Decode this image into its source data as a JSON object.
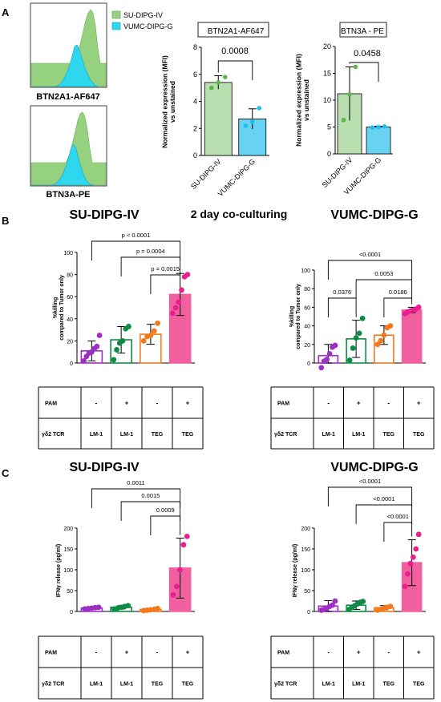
{
  "panels": {
    "a": "A",
    "b": "B",
    "c": "C",
    "middle_title": "2 day co-culturing"
  },
  "flow": {
    "legend": [
      "SU-DIPG-IV",
      "VUMC-DIPG-G"
    ],
    "plot1_label": "BTN2A1-AF647",
    "plot2_label": "BTN3A-PE",
    "colors": {
      "green": "#96d17f",
      "cyan": "#2ed6ee"
    }
  },
  "chart_data": [
    {
      "id": "a1",
      "type": "bar",
      "title": "BTN2A1-AF647",
      "ylabel": "Normalized expression (MFI)\nvs unstained",
      "ylim": [
        0,
        8
      ],
      "yticks": [
        "0",
        "2",
        "4",
        "6",
        "8"
      ],
      "categories": [
        "SU-DIPG-IV",
        "VUMC-DIPG-G"
      ],
      "values": [
        5.4,
        2.7
      ],
      "errors": [
        0.5,
        0.75
      ],
      "points": [
        [
          5.0,
          5.4,
          5.8
        ],
        [
          2.2,
          2.5,
          3.5
        ]
      ],
      "colors": [
        "#b9deb0",
        "#68d2f2"
      ],
      "point_colors": [
        "#5fb54a",
        "#1ebff0"
      ],
      "comparisons": [
        {
          "from": 0,
          "to": 1,
          "label": "0.0008"
        }
      ]
    },
    {
      "id": "a2",
      "type": "bar",
      "title": "BTN3A - PE",
      "ylabel": "Normalized expression (MFI)\nvs unstained",
      "ylim": [
        0,
        20
      ],
      "yticks": [
        "0",
        "5",
        "10",
        "15",
        "20"
      ],
      "categories": [
        "SU-DIPG-IV",
        "VUMC-DIPG-G"
      ],
      "values": [
        11.2,
        5.0
      ],
      "errors": [
        5.0,
        0.15
      ],
      "points": [
        [
          6.3,
          11.1,
          16.2
        ],
        [
          4.9,
          5.0,
          5.1
        ]
      ],
      "colors": [
        "#b9deb0",
        "#68d2f2"
      ],
      "point_colors": [
        "#5fb54a",
        "#1ebff0"
      ],
      "comparisons": [
        {
          "from": 0,
          "to": 1,
          "label": "0.0458"
        }
      ]
    },
    {
      "id": "b1",
      "type": "bar",
      "title": "SU-DIPG-IV",
      "ylabel": "%killing\ncompared to Tumor only",
      "ylim": [
        0,
        100
      ],
      "yticks": [
        "0",
        "20",
        "40",
        "60",
        "80",
        "100"
      ],
      "categories": [
        "LM-1 -",
        "LM-1 +",
        "TEG -",
        "TEG +"
      ],
      "values": [
        11,
        21,
        26,
        62
      ],
      "errors": [
        9,
        12,
        9,
        19
      ],
      "points": [
        [
          2,
          6,
          9,
          10,
          13,
          15,
          25
        ],
        [
          3,
          12,
          18,
          20,
          31,
          33
        ],
        [
          20,
          24,
          25,
          29,
          36
        ],
        [
          45,
          50,
          55,
          66,
          78,
          80
        ]
      ],
      "colors": [
        "#9d2fc4",
        "#0e8c43",
        "#f27a1d",
        "#f25f9f"
      ],
      "point_colors": [
        "#9d2fc4",
        "#0e8c43",
        "#f27a1d",
        "#e8208e"
      ],
      "comparisons": [
        {
          "from": 0,
          "to": 3,
          "label": "p < 0.0001"
        },
        {
          "from": 1,
          "to": 3,
          "label": "p = 0.0004"
        },
        {
          "from": 2,
          "to": 3,
          "label": "p = 0.0015"
        }
      ],
      "table": {
        "row1": "PAM",
        "row2": "γδ2 TCR",
        "pam": [
          "-",
          "+",
          "-",
          "+"
        ],
        "tcr": [
          "LM-1",
          "LM-1",
          "TEG",
          "TEG"
        ]
      }
    },
    {
      "id": "b2",
      "type": "bar",
      "title": "VUMC-DIPG-G",
      "ylabel": "%killing\ncompared to Tumor only",
      "ylim": [
        0,
        100
      ],
      "yticks": [
        "0",
        "20",
        "40",
        "60",
        "80",
        "100"
      ],
      "categories": [
        "LM-1 -",
        "LM-1 +",
        "TEG -",
        "TEG +"
      ],
      "values": [
        8,
        26,
        30,
        57
      ],
      "errors": [
        12,
        20,
        10,
        3
      ],
      "points": [
        [
          -5,
          2,
          4,
          10,
          17,
          19
        ],
        [
          3,
          16,
          27,
          32,
          48
        ],
        [
          20,
          24,
          30,
          38,
          40
        ],
        [
          53,
          55,
          56,
          57,
          58,
          60
        ]
      ],
      "colors": [
        "#9d2fc4",
        "#0e8c43",
        "#f27a1d",
        "#f25f9f"
      ],
      "point_colors": [
        "#9d2fc4",
        "#0e8c43",
        "#f27a1d",
        "#e8208e"
      ],
      "comparisons": [
        {
          "from": 0,
          "to": 3,
          "label": "<0.0001"
        },
        {
          "from": 1,
          "to": 3,
          "label": "0.0053"
        },
        {
          "from": 0,
          "to": 1,
          "label": "0.0376"
        },
        {
          "from": 2,
          "to": 3,
          "label": "0.0186"
        }
      ],
      "table": {
        "row1": "PAM",
        "row2": "γδ2 TCR",
        "pam": [
          "-",
          "+",
          "-",
          "+"
        ],
        "tcr": [
          "LM-1",
          "LM-1",
          "TEG",
          "TEG"
        ]
      }
    },
    {
      "id": "c1",
      "type": "bar",
      "title": "SU-DIPG-IV",
      "ylabel": "IFNγ release (pg/ml)",
      "ylim": [
        0,
        200
      ],
      "yticks": [
        "0",
        "50",
        "100",
        "150",
        "200"
      ],
      "categories": [
        "LM-1 -",
        "LM-1 +",
        "TEG -",
        "TEG +"
      ],
      "values": [
        8,
        10,
        5,
        104
      ],
      "errors": [
        2,
        4,
        2,
        72
      ],
      "points": [
        [
          6,
          7,
          8,
          9,
          10
        ],
        [
          6,
          8,
          10,
          12,
          14
        ],
        [
          2,
          3,
          4,
          5,
          7
        ],
        [
          40,
          60,
          100,
          160,
          180
        ]
      ],
      "colors": [
        "#9d2fc4",
        "#0e8c43",
        "#f27a1d",
        "#f25f9f"
      ],
      "point_colors": [
        "#9d2fc4",
        "#0e8c43",
        "#f27a1d",
        "#e8208e"
      ],
      "comparisons": [
        {
          "from": 0,
          "to": 3,
          "label": "0.0011"
        },
        {
          "from": 1,
          "to": 3,
          "label": "0.0015"
        },
        {
          "from": 2,
          "to": 3,
          "label": "0.0009"
        }
      ],
      "table": {
        "row1": "PAM",
        "row2": "γδ2 TCR",
        "pam": [
          "-",
          "+",
          "-",
          "+"
        ],
        "tcr": [
          "LM-1",
          "LM-1",
          "TEG",
          "TEG"
        ]
      }
    },
    {
      "id": "c2",
      "type": "bar",
      "title": "VUMC-DIPG-G",
      "ylabel": "IFNγ release (pg/ml)",
      "ylim": [
        0,
        200
      ],
      "yticks": [
        "0",
        "50",
        "100",
        "150",
        "200"
      ],
      "categories": [
        "LM-1 -",
        "LM-1 +",
        "TEG -",
        "TEG +"
      ],
      "values": [
        13,
        15,
        9,
        117
      ],
      "errors": [
        13,
        10,
        5,
        55
      ],
      "points": [
        [
          3,
          5,
          8,
          12,
          15,
          25
        ],
        [
          5,
          10,
          14,
          18,
          22,
          24
        ],
        [
          3,
          5,
          8,
          10,
          12
        ],
        [
          60,
          90,
          115,
          130,
          150,
          185
        ]
      ],
      "colors": [
        "#9d2fc4",
        "#0e8c43",
        "#f27a1d",
        "#f25f9f"
      ],
      "point_colors": [
        "#9d2fc4",
        "#0e8c43",
        "#f27a1d",
        "#e8208e"
      ],
      "comparisons": [
        {
          "from": 0,
          "to": 3,
          "label": "<0.0001"
        },
        {
          "from": 1,
          "to": 3,
          "label": "<0.0001"
        },
        {
          "from": 2,
          "to": 3,
          "label": "<0.0001"
        }
      ],
      "table": {
        "row1": "PAM",
        "row2": "γδ2 TCR",
        "pam": [
          "-",
          "+",
          "-",
          "+"
        ],
        "tcr": [
          "LM-1",
          "LM-1",
          "TEG",
          "TEG"
        ]
      }
    }
  ]
}
